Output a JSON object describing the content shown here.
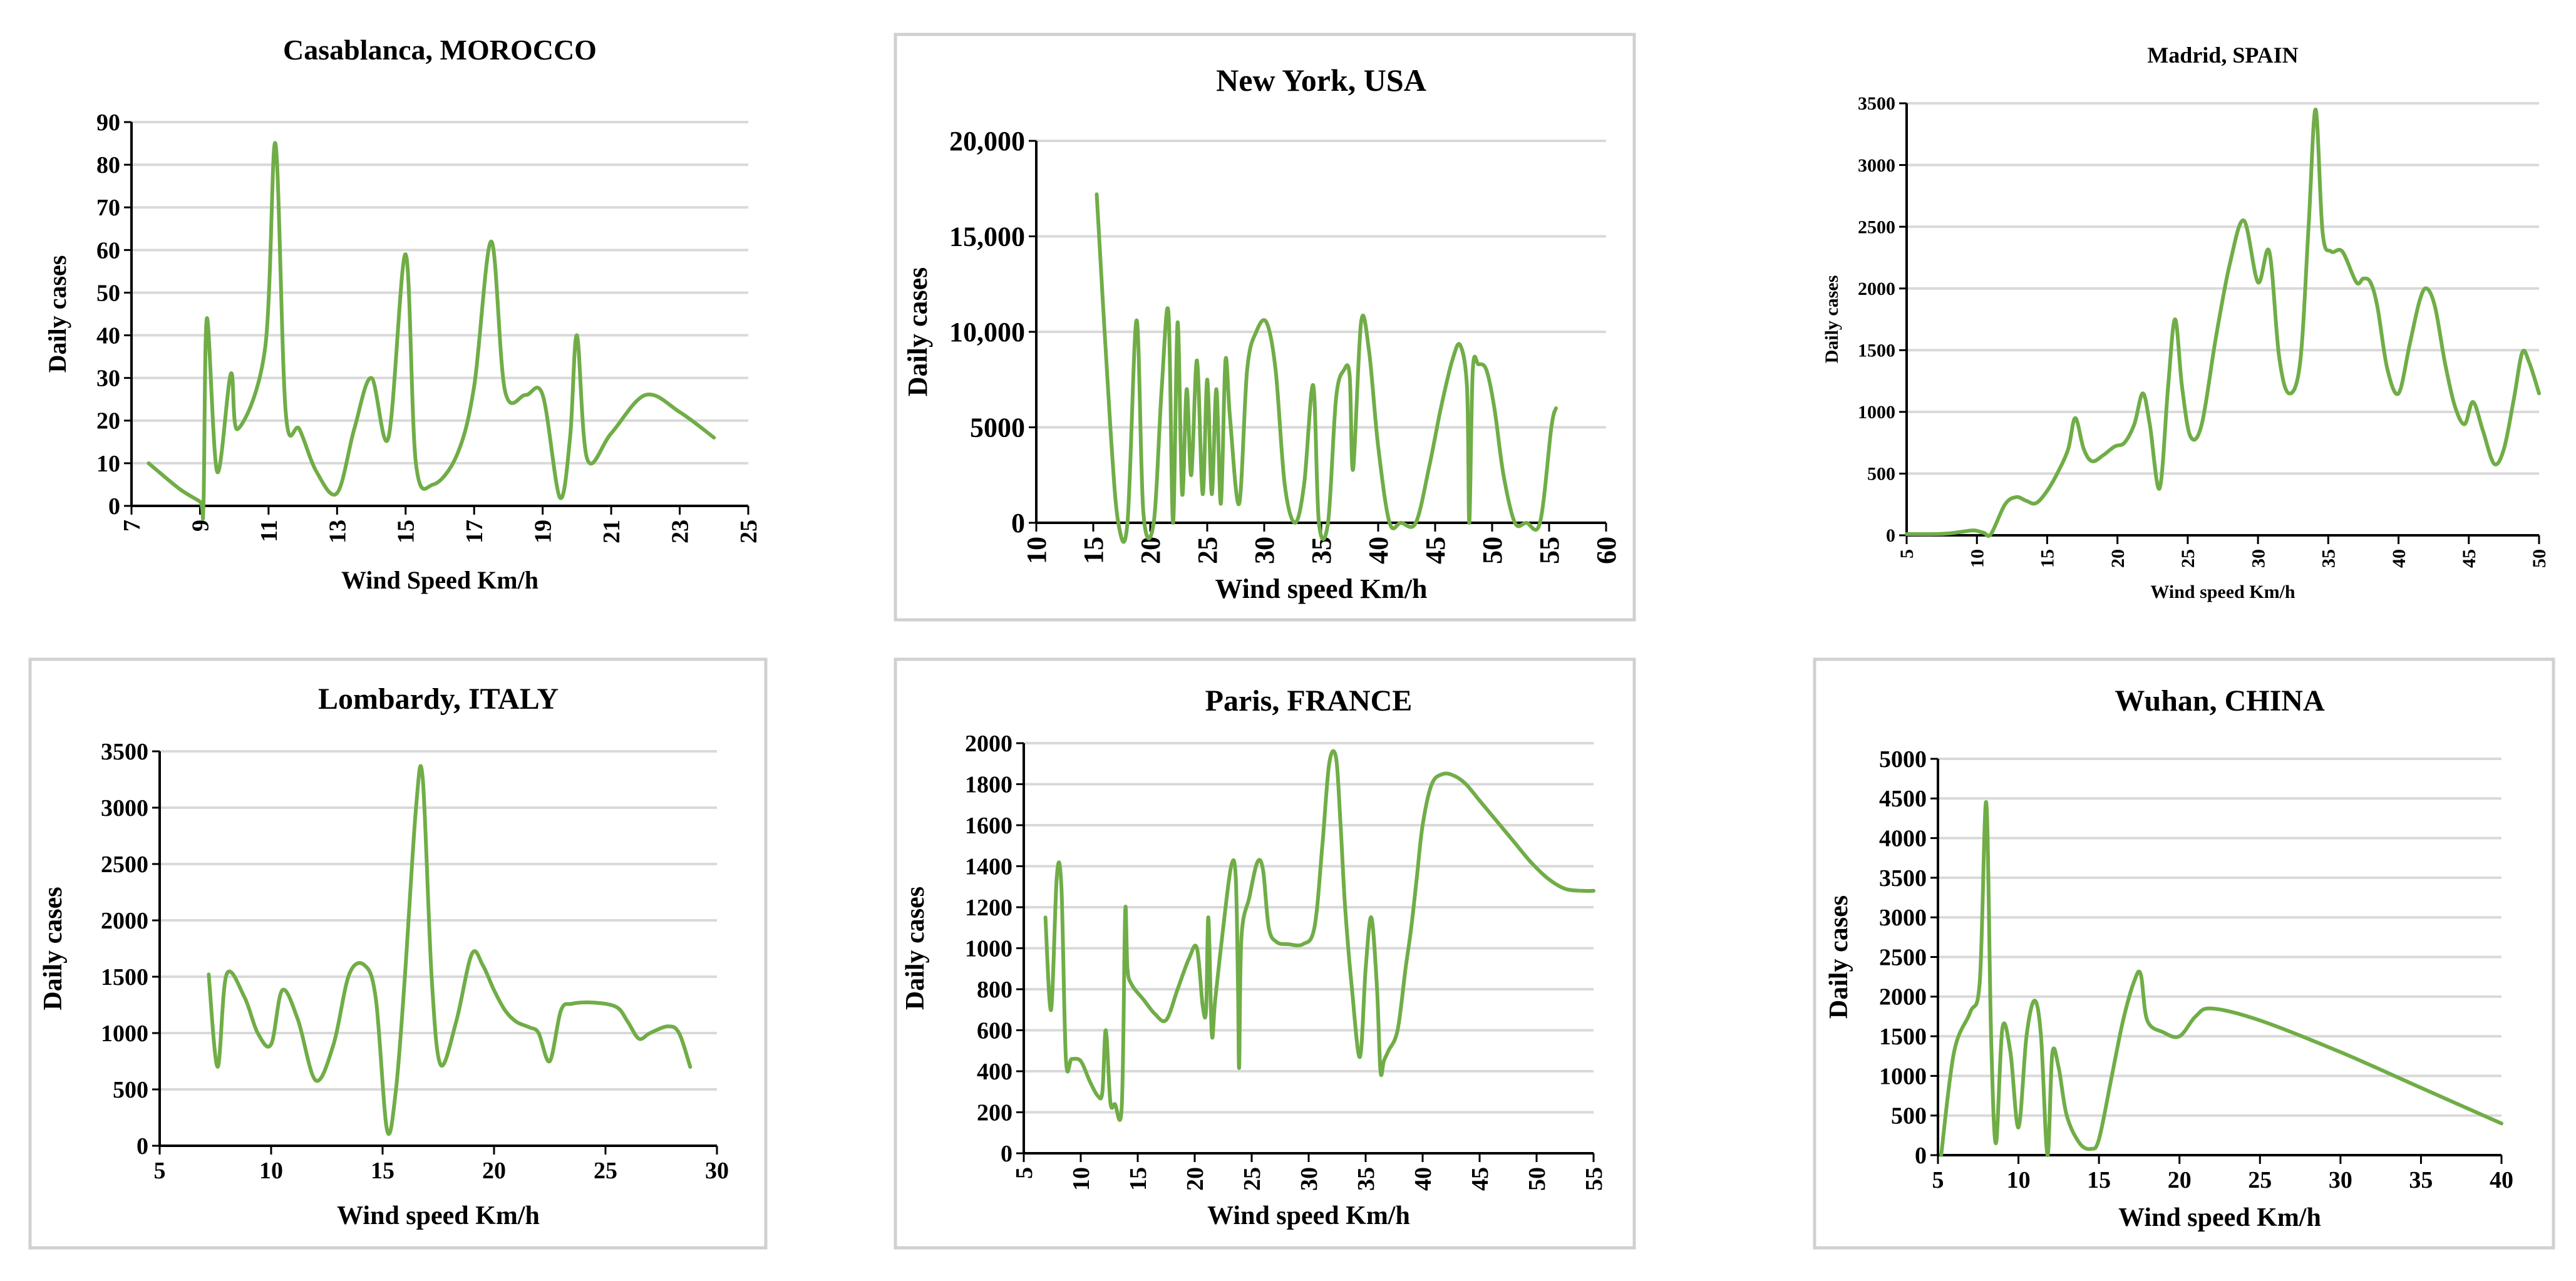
{
  "chart_data": [
    {
      "type": "line",
      "title": "Casablanca, MOROCCO",
      "xlabel": "Wind Speed Km/h",
      "ylabel": "Daily cases",
      "xlim": [
        7,
        25
      ],
      "ylim": [
        0,
        90
      ],
      "xticks": [
        7,
        9,
        11,
        13,
        15,
        17,
        19,
        21,
        23,
        25
      ],
      "yticks": [
        0,
        10,
        20,
        30,
        40,
        50,
        60,
        70,
        80,
        90
      ],
      "grid": "horizontal",
      "line_color": "#70ad47",
      "series": [
        {
          "x": [
            7.5,
            8.4,
            9,
            9.1,
            9.2,
            9.5,
            9.9,
            10.1,
            10.9,
            11.2,
            11.5,
            11.9,
            12.4,
            13.0,
            13.5,
            14.0,
            14.5,
            15.0,
            15.3,
            15.8,
            16.5,
            17.0,
            17.5,
            17.9,
            18.5,
            19.0,
            19.5,
            19.8,
            20.0,
            20.3,
            21.0,
            22.0,
            23.0,
            24.0
          ],
          "y": [
            10,
            4,
            1,
            0,
            44,
            8,
            31,
            18,
            37,
            85,
            22,
            18,
            8,
            3,
            18,
            30,
            16,
            59,
            10,
            5,
            12,
            28,
            62,
            27,
            26,
            26,
            2,
            16,
            40,
            11,
            17,
            26,
            22,
            16
          ]
        }
      ]
    },
    {
      "type": "line",
      "title": "New York, USA",
      "xlabel": "Wind speed Km/h",
      "ylabel": "Daily cases",
      "xlim": [
        10,
        60
      ],
      "ylim": [
        0,
        20000
      ],
      "xticks": [
        10,
        15,
        20,
        25,
        30,
        35,
        40,
        45,
        50,
        55,
        60
      ],
      "yticks": [
        0,
        5000,
        10000,
        15000,
        20000
      ],
      "ytick_labels": [
        "0",
        "5000",
        "10,000",
        "15,000",
        "20,000"
      ],
      "grid": "horizontal",
      "line_color": "#70ad47",
      "series": [
        {
          "x": [
            15.3,
            16.5,
            17.2,
            18.0,
            18.8,
            19.4,
            20.3,
            21.0,
            21.6,
            22.0,
            22.4,
            22.8,
            23.2,
            23.6,
            24.1,
            24.6,
            25.0,
            25.4,
            25.8,
            26.2,
            26.6,
            27.0,
            27.8,
            28.5,
            29.3,
            30.2,
            31.0,
            31.8,
            32.7,
            33.5,
            34.3,
            34.8,
            35.6,
            36.3,
            37.0,
            37.5,
            37.8,
            38.5,
            39.2,
            40.0,
            41.0,
            42.0,
            43.3,
            44.5,
            45.5,
            46.5,
            47.2,
            47.8,
            48.0,
            48.3,
            48.8,
            49.5,
            50.2,
            51.0,
            52.0,
            53.0,
            54.2,
            55.2,
            55.6
          ],
          "y": [
            17200,
            5000,
            0,
            0,
            10600,
            500,
            0,
            7000,
            11000,
            0,
            10500,
            1500,
            7000,
            2500,
            8500,
            1500,
            7500,
            1500,
            7000,
            1000,
            8500,
            5500,
            1000,
            8000,
            10000,
            10500,
            8000,
            2000,
            0,
            2000,
            7200,
            0,
            0,
            6500,
            8000,
            7700,
            2800,
            10500,
            9000,
            4000,
            0,
            0,
            0,
            3000,
            6000,
            8500,
            9300,
            7000,
            0,
            8000,
            8300,
            8000,
            6000,
            2500,
            0,
            0,
            0,
            5000,
            6000
          ]
        }
      ]
    },
    {
      "type": "line",
      "title": "Madrid, SPAIN",
      "xlabel": "Wind speed Km/h",
      "ylabel": "Daily cases",
      "xlim": [
        5,
        50
      ],
      "ylim": [
        0,
        3500
      ],
      "xticks": [
        5,
        10,
        15,
        20,
        25,
        30,
        35,
        40,
        45,
        50
      ],
      "yticks": [
        0,
        500,
        1000,
        1500,
        2000,
        2500,
        3000,
        3500
      ],
      "grid": "horizontal",
      "line_color": "#70ad47",
      "series": [
        {
          "x": [
            5,
            7,
            8,
            9,
            9.8,
            10.5,
            11.0,
            12.0,
            12.8,
            13.5,
            14.2,
            15.0,
            15.8,
            16.5,
            17.0,
            17.6,
            18.2,
            19.0,
            19.8,
            20.5,
            21.2,
            21.8,
            22.3,
            23.0,
            23.6,
            24.1,
            24.6,
            25.2,
            26.0,
            27.0,
            28.0,
            29.0,
            30.0,
            30.8,
            31.5,
            32.2,
            33.0,
            33.6,
            34.1,
            34.6,
            35.2,
            36.0,
            37.0,
            37.5,
            38.0,
            38.5,
            39.2,
            40.0,
            40.8,
            41.5,
            42.0,
            42.6,
            43.3,
            44.0,
            44.7,
            45.3,
            46.0,
            46.8,
            47.5,
            48.2,
            48.8,
            49.3,
            50.0
          ],
          "y": [
            10,
            10,
            15,
            30,
            40,
            20,
            10,
            250,
            310,
            280,
            260,
            360,
            520,
            700,
            950,
            700,
            600,
            650,
            720,
            750,
            900,
            1150,
            900,
            380,
            1200,
            1750,
            1200,
            800,
            900,
            1600,
            2200,
            2550,
            2050,
            2300,
            1450,
            1150,
            1400,
            2500,
            3450,
            2450,
            2300,
            2300,
            2050,
            2080,
            2050,
            1850,
            1350,
            1150,
            1550,
            1900,
            2000,
            1850,
            1400,
            1050,
            900,
            1080,
            850,
            580,
            700,
            1100,
            1480,
            1400,
            1150
          ]
        }
      ]
    },
    {
      "type": "line",
      "title": "Lombardy,  ITALY",
      "xlabel": "Wind speed Km/h",
      "ylabel": "Daily cases",
      "xlim": [
        5,
        30
      ],
      "ylim": [
        0,
        3500
      ],
      "xticks": [
        5,
        10,
        15,
        20,
        25,
        30
      ],
      "yticks": [
        0,
        500,
        1000,
        1500,
        2000,
        2500,
        3000,
        3500
      ],
      "grid": "horizontal",
      "line_color": "#70ad47",
      "series": [
        {
          "x": [
            7.2,
            7.6,
            8.0,
            8.8,
            9.4,
            10.0,
            10.5,
            11.2,
            12.0,
            12.8,
            13.5,
            14.2,
            14.7,
            15.2,
            15.6,
            16.0,
            16.5,
            16.8,
            17.2,
            17.6,
            18.3,
            19.0,
            19.5,
            20.0,
            20.5,
            21.0,
            21.6,
            22.0,
            22.5,
            23.0,
            23.5,
            24.5,
            25.5,
            26.0,
            26.5,
            27.0,
            27.8,
            28.3,
            28.8
          ],
          "y": [
            1520,
            700,
            1520,
            1320,
            1000,
            900,
            1380,
            1120,
            580,
            900,
            1520,
            1600,
            1300,
            140,
            500,
            1500,
            3000,
            3260,
            1500,
            720,
            1100,
            1700,
            1600,
            1380,
            1200,
            1100,
            1050,
            1000,
            750,
            1200,
            1260,
            1270,
            1230,
            1100,
            950,
            1000,
            1060,
            1000,
            700
          ]
        }
      ]
    },
    {
      "type": "line",
      "title": "Paris, FRANCE",
      "xlabel": "Wind speed Km/h",
      "ylabel": "Daily cases",
      "xlim": [
        5,
        55
      ],
      "ylim": [
        0,
        2000
      ],
      "xticks": [
        5,
        10,
        15,
        20,
        25,
        30,
        35,
        40,
        45,
        50,
        55
      ],
      "yticks": [
        0,
        200,
        400,
        600,
        800,
        1000,
        1200,
        1400,
        1600,
        1800,
        2000
      ],
      "grid": "horizontal",
      "line_color": "#70ad47",
      "series": [
        {
          "x": [
            6.9,
            7.4,
            7.9,
            8.3,
            8.7,
            9.2,
            10.0,
            10.8,
            11.5,
            11.9,
            12.2,
            12.6,
            13.0,
            13.6,
            13.9,
            14.1,
            14.5,
            15.5,
            16.5,
            17.5,
            18.5,
            19.5,
            20.2,
            20.7,
            21.0,
            21.2,
            21.5,
            21.8,
            22.5,
            23.2,
            23.6,
            23.8,
            23.9,
            24.1,
            24.8,
            25.5,
            26.0,
            26.5,
            27.2,
            28.2,
            29.5,
            30.5,
            31.2,
            31.8,
            32.4,
            32.8,
            33.2,
            33.8,
            34.5,
            35.0,
            35.5,
            36.0,
            36.3,
            36.6,
            37.0,
            37.8,
            38.5,
            39.0,
            39.5,
            40.0,
            40.8,
            41.8,
            42.8,
            43.8,
            45.0,
            46.5,
            48.0,
            49.5,
            51.0,
            52.5,
            54.0,
            55.0
          ],
          "y": [
            1150,
            700,
            1350,
            1300,
            460,
            460,
            450,
            350,
            280,
            300,
            600,
            250,
            240,
            230,
            1180,
            900,
            820,
            750,
            680,
            650,
            800,
            950,
            1000,
            720,
            700,
            1150,
            580,
            750,
            1100,
            1400,
            1350,
            800,
            420,
            1050,
            1250,
            1420,
            1380,
            1100,
            1030,
            1020,
            1020,
            1100,
            1500,
            1900,
            1930,
            1600,
            1200,
            800,
            470,
            900,
            1150,
            800,
            400,
            450,
            500,
            600,
            900,
            1100,
            1350,
            1600,
            1800,
            1850,
            1840,
            1800,
            1720,
            1620,
            1520,
            1420,
            1340,
            1290,
            1280,
            1280
          ]
        }
      ]
    },
    {
      "type": "line",
      "title": "Wuhan,  CHINA",
      "xlabel": "Wind speed Km/h",
      "ylabel": "Daily cases",
      "xlim": [
        5,
        40
      ],
      "ylim": [
        0,
        5000
      ],
      "xticks": [
        5,
        10,
        15,
        20,
        25,
        30,
        35,
        40
      ],
      "yticks": [
        0,
        500,
        1000,
        1500,
        2000,
        2500,
        3000,
        3500,
        4000,
        4500,
        5000
      ],
      "grid": "horizontal",
      "line_color": "#70ad47",
      "series": [
        {
          "x": [
            5.2,
            6.0,
            7.0,
            7.6,
            8.0,
            8.3,
            8.6,
            9.0,
            9.5,
            10.0,
            10.5,
            11.0,
            11.4,
            11.8,
            12.1,
            12.5,
            13.0,
            13.8,
            14.5,
            15.0,
            15.8,
            16.5,
            17.2,
            17.6,
            18.0,
            19.0,
            20.0,
            21.0,
            22.0,
            25.0,
            30.0,
            35.0,
            40.0
          ],
          "y": [
            0,
            1300,
            1800,
            2200,
            4450,
            1500,
            150,
            1600,
            1300,
            350,
            1500,
            1950,
            1500,
            0,
            1280,
            1100,
            500,
            150,
            80,
            200,
            1000,
            1700,
            2200,
            2280,
            1700,
            1550,
            1500,
            1750,
            1850,
            1700,
            1300,
            850,
            400
          ]
        }
      ]
    }
  ]
}
